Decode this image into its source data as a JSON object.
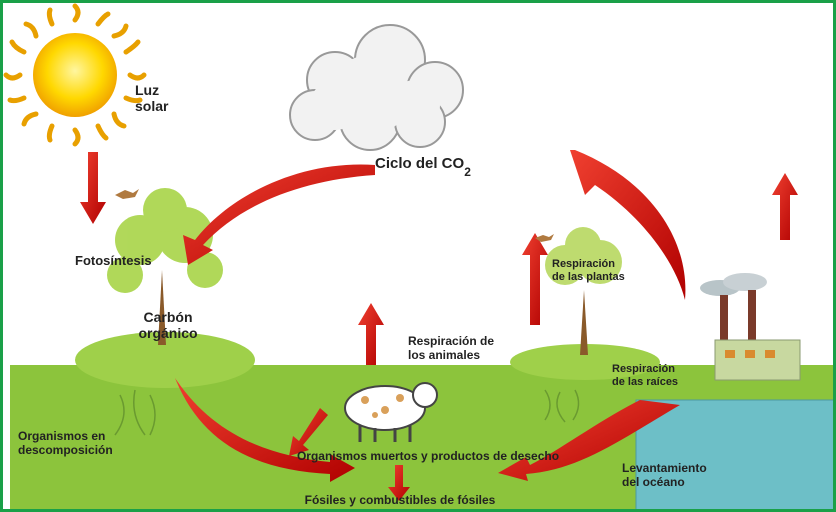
{
  "diagram": {
    "title": {
      "text": "Ciclo del CO",
      "subscript": "2"
    },
    "labels": [
      {
        "id": "sun",
        "lines": [
          "Luz",
          "solar"
        ]
      },
      {
        "id": "photo",
        "lines": [
          "Fotosíntesis"
        ]
      },
      {
        "id": "carbon",
        "lines": [
          "Carbón",
          "orgánico"
        ]
      },
      {
        "id": "animals",
        "lines": [
          "Respiración de",
          "los animales"
        ]
      },
      {
        "id": "plants",
        "lines": [
          "Respiración",
          "de las plantas"
        ]
      },
      {
        "id": "roots",
        "lines": [
          "Respiración",
          "de las raíces"
        ]
      },
      {
        "id": "decomp",
        "lines": [
          "Organismos en",
          "descomposición"
        ]
      },
      {
        "id": "dead",
        "lines": [
          "Organismos muertos y productos de desecho"
        ]
      },
      {
        "id": "fossil",
        "lines": [
          "Fósiles y combustibles de fósiles"
        ]
      },
      {
        "id": "ocean",
        "lines": [
          "Levantamiento",
          "del océano"
        ]
      }
    ]
  }
}
